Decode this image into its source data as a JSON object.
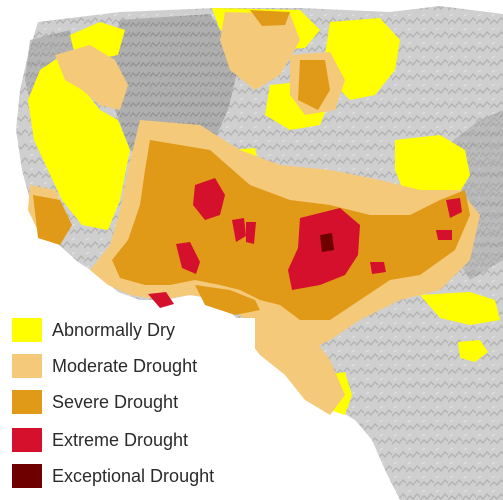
{
  "colors": {
    "land_light": "#d7d7d7",
    "land_dark": "#9a9a9a",
    "abnormally_dry": "#ffff00",
    "moderate": "#f5c97a",
    "severe": "#e09a18",
    "extreme": "#d5102c",
    "exceptional": "#6e0000"
  },
  "legend": {
    "items": [
      {
        "label": "Abnormally Dry",
        "color": "#ffff00"
      },
      {
        "label": "Moderate Drought",
        "color": "#f5c97a"
      },
      {
        "label": "Severe Drought",
        "color": "#e09a18"
      },
      {
        "label": "Extreme Drought",
        "color": "#d5102c"
      },
      {
        "label": "Exceptional Drought",
        "color": "#6e0000"
      }
    ]
  }
}
